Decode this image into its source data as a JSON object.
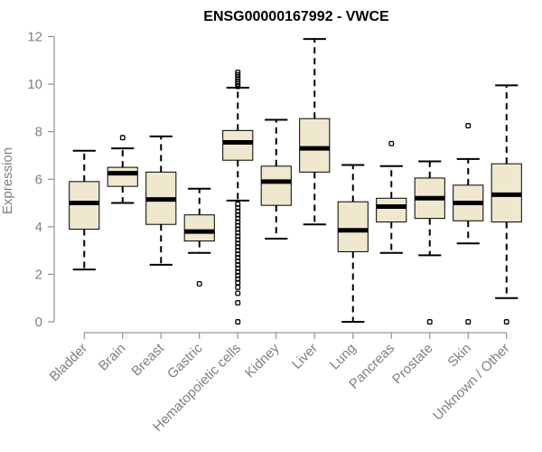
{
  "chart_data": {
    "type": "boxplot",
    "title": "ENSG00000167992 - VWCE",
    "xlabel": "",
    "ylabel": "Expression",
    "ylim": [
      0,
      12
    ],
    "yticks": [
      0,
      2,
      4,
      6,
      8,
      10,
      12
    ],
    "grid": false,
    "box_color": "#efe8cf",
    "categories": [
      "Bladder",
      "Brain",
      "Breast",
      "Gastric",
      "Hematopoietic cells",
      "Kidney",
      "Liver",
      "Lung",
      "Pancreas",
      "Prostate",
      "Skin",
      "Unknown / Other"
    ],
    "boxes": [
      {
        "name": "Bladder",
        "whisker_low": 2.2,
        "q1": 3.9,
        "median": 5.0,
        "q3": 5.9,
        "whisker_high": 7.2,
        "outliers": []
      },
      {
        "name": "Brain",
        "whisker_low": 5.0,
        "q1": 5.7,
        "median": 6.25,
        "q3": 6.5,
        "whisker_high": 7.3,
        "outliers": [
          7.75
        ]
      },
      {
        "name": "Breast",
        "whisker_low": 2.4,
        "q1": 4.1,
        "median": 5.15,
        "q3": 6.3,
        "whisker_high": 7.8,
        "outliers": []
      },
      {
        "name": "Gastric",
        "whisker_low": 2.9,
        "q1": 3.4,
        "median": 3.8,
        "q3": 4.5,
        "whisker_high": 5.6,
        "outliers": [
          1.6
        ]
      },
      {
        "name": "Hematopoietic cells",
        "whisker_low": 5.1,
        "q1": 6.8,
        "median": 7.55,
        "q3": 8.05,
        "whisker_high": 9.85,
        "outliers": [
          10.5,
          10.4,
          10.3,
          10.2,
          10.1,
          10.0,
          9.9,
          4.95,
          4.8,
          4.65,
          4.5,
          4.35,
          4.2,
          4.05,
          3.9,
          3.75,
          3.6,
          3.45,
          3.3,
          3.15,
          3.0,
          2.85,
          2.7,
          2.55,
          2.4,
          2.25,
          2.1,
          1.95,
          1.8,
          1.65,
          1.45,
          1.2,
          0.8,
          0.0
        ]
      },
      {
        "name": "Kidney",
        "whisker_low": 3.5,
        "q1": 4.9,
        "median": 5.9,
        "q3": 6.55,
        "whisker_high": 8.5,
        "outliers": []
      },
      {
        "name": "Liver",
        "whisker_low": 4.1,
        "q1": 6.3,
        "median": 7.3,
        "q3": 8.55,
        "whisker_high": 11.9,
        "outliers": []
      },
      {
        "name": "Lung",
        "whisker_low": 0.0,
        "q1": 2.95,
        "median": 3.85,
        "q3": 5.05,
        "whisker_high": 6.6,
        "outliers": []
      },
      {
        "name": "Pancreas",
        "whisker_low": 2.9,
        "q1": 4.2,
        "median": 4.85,
        "q3": 5.2,
        "whisker_high": 6.55,
        "outliers": [
          7.5
        ]
      },
      {
        "name": "Prostate",
        "whisker_low": 2.8,
        "q1": 4.35,
        "median": 5.2,
        "q3": 6.05,
        "whisker_high": 6.75,
        "outliers": [
          0.0
        ]
      },
      {
        "name": "Skin",
        "whisker_low": 3.3,
        "q1": 4.25,
        "median": 5.0,
        "q3": 5.75,
        "whisker_high": 6.85,
        "outliers": [
          8.25,
          0.0
        ]
      },
      {
        "name": "Unknown / Other",
        "whisker_low": 1.0,
        "q1": 4.2,
        "median": 5.35,
        "q3": 6.65,
        "whisker_high": 9.95,
        "outliers": [
          0.0
        ]
      }
    ]
  }
}
